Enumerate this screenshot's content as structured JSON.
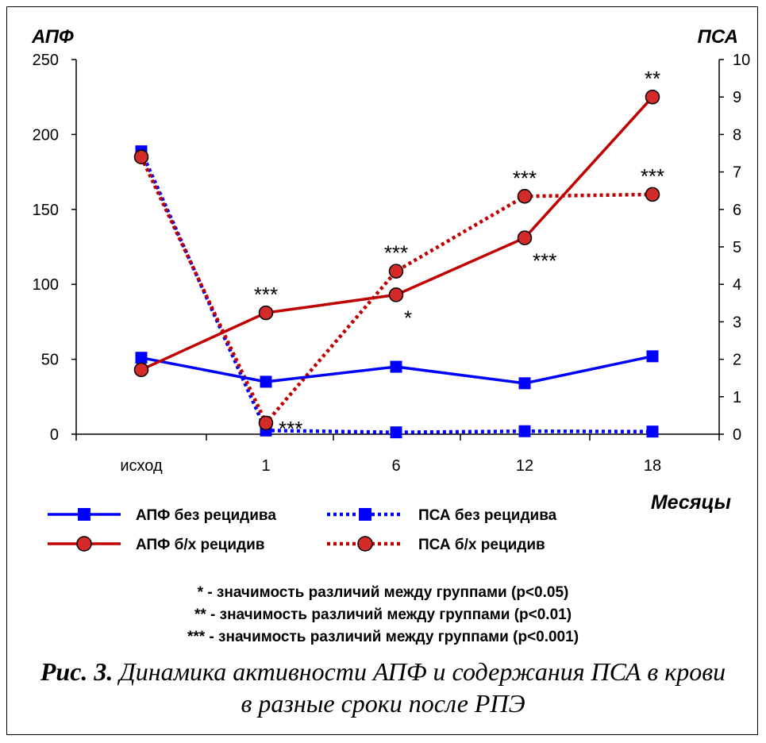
{
  "chart_data": {
    "type": "line",
    "categories": [
      "исход",
      "1",
      "6",
      "12",
      "18"
    ],
    "xlabel": "Месяцы",
    "left_axis": {
      "label": "АПФ",
      "ylim": [
        0,
        250
      ],
      "ticks": [
        0,
        50,
        100,
        150,
        200,
        250
      ]
    },
    "right_axis": {
      "label": "ПСА",
      "ylim": [
        0,
        10
      ],
      "ticks": [
        0,
        1,
        2,
        3,
        4,
        5,
        6,
        7,
        8,
        9,
        10
      ]
    },
    "series": [
      {
        "name": "АПФ без рецидива",
        "axis": "left",
        "style": "solid",
        "marker": "square",
        "color": "#0000ff",
        "values": [
          51,
          35,
          45,
          34,
          52
        ]
      },
      {
        "name": "АПФ б/х рецидив",
        "axis": "left",
        "style": "solid",
        "marker": "circle",
        "color": "#c00000",
        "values": [
          43,
          81,
          93,
          131,
          225
        ]
      },
      {
        "name": "ПСА без рецидива",
        "axis": "right",
        "style": "dotted",
        "marker": "square",
        "color": "#0000ff",
        "values": [
          7.55,
          0.1,
          0.05,
          0.08,
          0.07
        ]
      },
      {
        "name": "ПСА б/х рецидив",
        "axis": "right",
        "style": "dotted",
        "marker": "circle",
        "color": "#c00000",
        "values": [
          7.4,
          0.3,
          4.35,
          6.35,
          6.4
        ]
      }
    ],
    "annotations": [
      {
        "text": "***",
        "category": "1",
        "series": "АПФ б/х рецидив",
        "pos": "above"
      },
      {
        "text": "***",
        "category": "1",
        "series": "ПСА б/х рецидив",
        "pos": "right"
      },
      {
        "text": "***",
        "category": "6",
        "series": "ПСА б/х рецидив",
        "pos": "above"
      },
      {
        "text": "*",
        "category": "6",
        "series": "АПФ б/х рецидив",
        "pos": "below-right"
      },
      {
        "text": "***",
        "category": "12",
        "series": "ПСА б/х рецидив",
        "pos": "above"
      },
      {
        "text": "***",
        "category": "12",
        "series": "АПФ б/х рецидив",
        "pos": "below-right"
      },
      {
        "text": "**",
        "category": "18",
        "series": "АПФ б/х рецидив",
        "pos": "above"
      },
      {
        "text": "***",
        "category": "18",
        "series": "ПСА б/х рецидив",
        "pos": "above"
      }
    ],
    "grid": false,
    "legend": "bottom"
  },
  "notes": [
    "* - значимость различий между группами (p<0.05)",
    "** - значимость различий между группами (p<0.01)",
    "*** - значимость различий между группами (p<0.001)"
  ],
  "caption": {
    "prefix": "Рис. 3.",
    "line1": " Динамика активности АПФ и содержания ПСА в крови",
    "line2": "в разные сроки после РПЭ"
  }
}
